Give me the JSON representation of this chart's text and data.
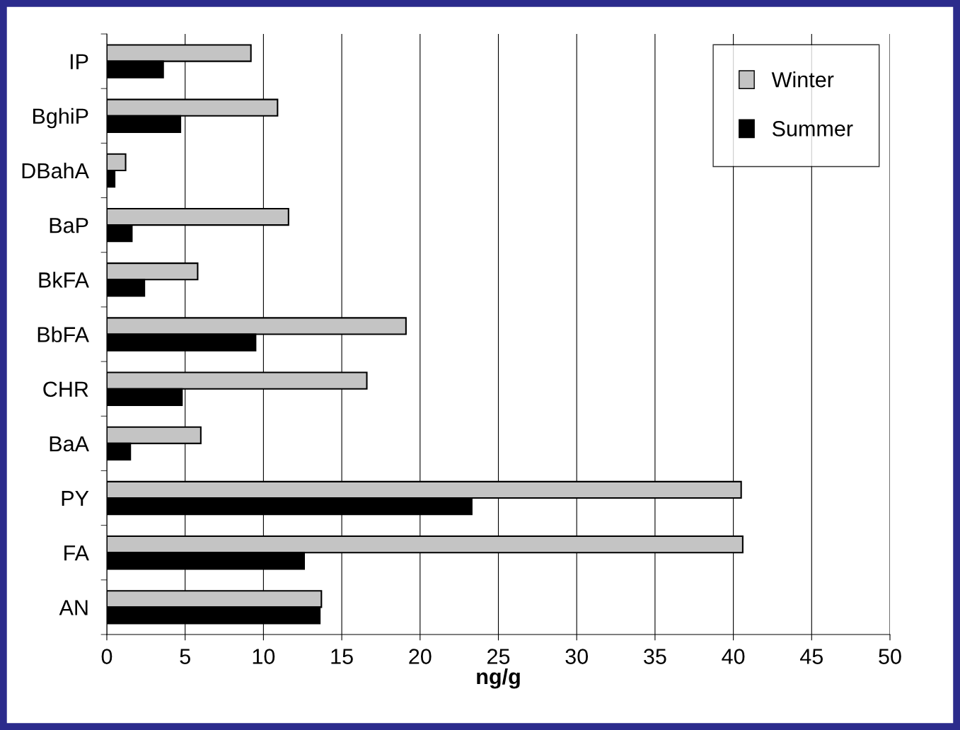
{
  "chart_data": {
    "type": "bar",
    "orientation": "horizontal",
    "xlabel": "ng/g",
    "categories": [
      "IP",
      "BghiP",
      "DBahA",
      "BaP",
      "BkFA",
      "BbFA",
      "CHR",
      "BaA",
      "PY",
      "FA",
      "AN"
    ],
    "series": [
      {
        "name": "Winter",
        "color": "#c4c4c4",
        "values": [
          9.2,
          10.9,
          1.2,
          11.6,
          5.8,
          19.1,
          16.6,
          6.0,
          40.5,
          40.6,
          13.7
        ]
      },
      {
        "name": "Summer",
        "color": "#000000",
        "values": [
          3.6,
          4.7,
          0.5,
          1.6,
          2.4,
          9.5,
          4.8,
          1.5,
          23.3,
          12.6,
          13.6
        ]
      }
    ],
    "xlim": [
      0,
      50
    ],
    "xticks": [
      0,
      5,
      10,
      15,
      20,
      25,
      30,
      35,
      40,
      45,
      50
    ],
    "grid": "x",
    "legend": "top right"
  }
}
